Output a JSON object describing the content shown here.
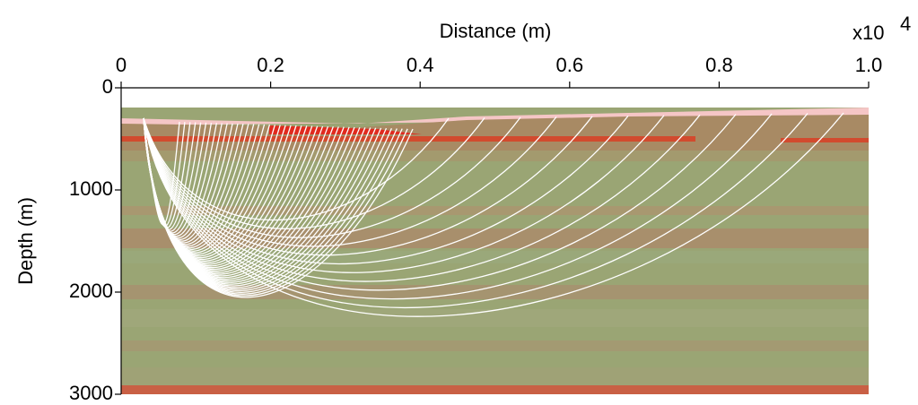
{
  "chart_data": {
    "type": "raypath",
    "xlabel": "Distance (m)",
    "ylabel": "Depth (m)",
    "x_multiplier": {
      "base": "x10",
      "exponent": "4"
    },
    "xlim": [
      0,
      1
    ],
    "xticks": [
      0,
      0.2,
      0.4,
      0.6,
      0.8,
      {
        "value": 1,
        "label": "1.0"
      }
    ],
    "ylim": [
      0,
      3000
    ],
    "yticks": [
      0,
      1000,
      2000,
      3000
    ],
    "y_inverted": true
  }
}
